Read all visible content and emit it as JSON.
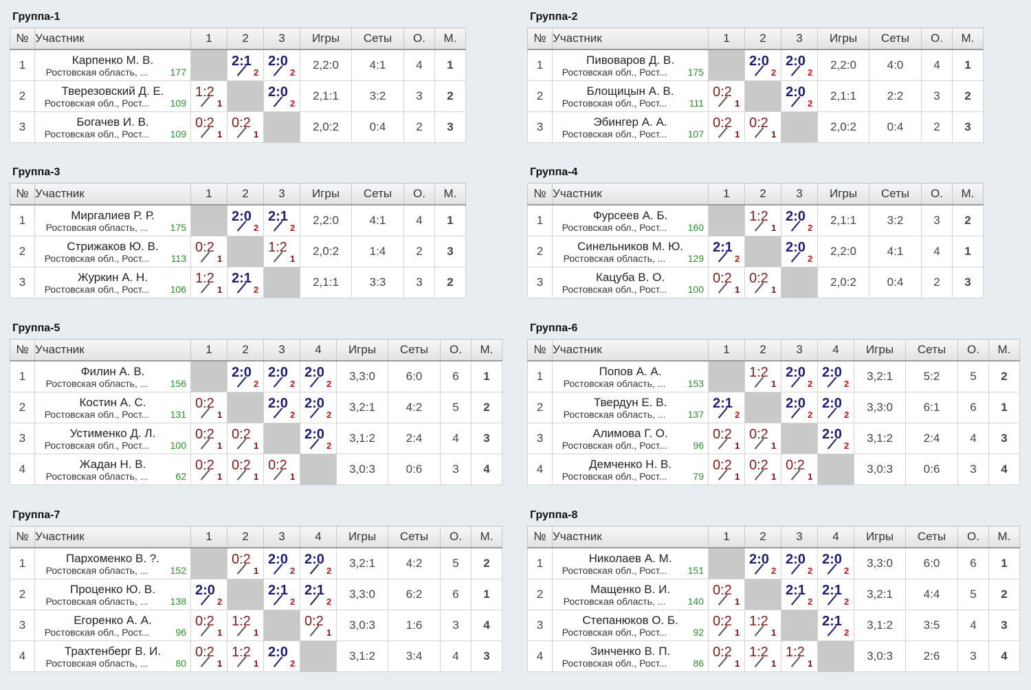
{
  "headers": {
    "num": "№",
    "player": "Участник",
    "games": "Игры",
    "sets": "Сеты",
    "points": "О.",
    "place": "М."
  },
  "groups": [
    {
      "title": "Группа-1",
      "players": [
        {
          "n": "1",
          "name": "Карпенко М. В.",
          "region": "Ростовская область, ...",
          "rating": "177",
          "results": [
            null,
            [
              "2:1",
              "2",
              "w"
            ],
            [
              "2:0",
              "2",
              "w"
            ]
          ],
          "games": "2,2:0",
          "sets": "4:1",
          "points": "4",
          "place": "1"
        },
        {
          "n": "2",
          "name": "Тверезовский Д. Е.",
          "region": "Ростовская обл., Рост...",
          "rating": "109",
          "results": [
            [
              "1:2",
              "1",
              "l"
            ],
            null,
            [
              "2:0",
              "2",
              "w"
            ]
          ],
          "games": "2,1:1",
          "sets": "3:2",
          "points": "3",
          "place": "2"
        },
        {
          "n": "3",
          "name": "Богачев И. В.",
          "region": "Ростовская обл., Рост...",
          "rating": "109",
          "results": [
            [
              "0:2",
              "1",
              "l"
            ],
            [
              "0:2",
              "1",
              "l"
            ],
            null
          ],
          "games": "2,0:2",
          "sets": "0:4",
          "points": "2",
          "place": "3"
        }
      ]
    },
    {
      "title": "Группа-2",
      "players": [
        {
          "n": "1",
          "name": "Пивоваров Д. В.",
          "region": "Ростовская обл., Рост...",
          "rating": "175",
          "results": [
            null,
            [
              "2:0",
              "2",
              "w"
            ],
            [
              "2:0",
              "2",
              "w"
            ]
          ],
          "games": "2,2:0",
          "sets": "4:0",
          "points": "4",
          "place": "1"
        },
        {
          "n": "2",
          "name": "Блощицын А. В.",
          "region": "Ростовская обл., Рост...",
          "rating": "111",
          "results": [
            [
              "0:2",
              "1",
              "l"
            ],
            null,
            [
              "2:0",
              "2",
              "w"
            ]
          ],
          "games": "2,1:1",
          "sets": "2:2",
          "points": "3",
          "place": "2"
        },
        {
          "n": "3",
          "name": "Эбингер А. А.",
          "region": "Ростовская обл., Рост...",
          "rating": "107",
          "results": [
            [
              "0:2",
              "1",
              "l"
            ],
            [
              "0:2",
              "1",
              "l"
            ],
            null
          ],
          "games": "2,0:2",
          "sets": "0:4",
          "points": "2",
          "place": "3"
        }
      ]
    },
    {
      "title": "Группа-3",
      "players": [
        {
          "n": "1",
          "name": "Миргалиев Р. Р.",
          "region": "Ростовская область, ...",
          "rating": "175",
          "results": [
            null,
            [
              "2:0",
              "2",
              "w"
            ],
            [
              "2:1",
              "2",
              "w"
            ]
          ],
          "games": "2,2:0",
          "sets": "4:1",
          "points": "4",
          "place": "1"
        },
        {
          "n": "2",
          "name": "Стрижаков Ю. В.",
          "region": "Ростовская обл., Рост...",
          "rating": "113",
          "results": [
            [
              "0:2",
              "1",
              "l"
            ],
            null,
            [
              "1:2",
              "1",
              "l"
            ]
          ],
          "games": "2,0:2",
          "sets": "1:4",
          "points": "2",
          "place": "3"
        },
        {
          "n": "3",
          "name": "Журкин А. Н.",
          "region": "Ростовская обл., Рост...",
          "rating": "106",
          "results": [
            [
              "1:2",
              "1",
              "l"
            ],
            [
              "2:1",
              "2",
              "w"
            ],
            null
          ],
          "games": "2,1:1",
          "sets": "3:3",
          "points": "3",
          "place": "2"
        }
      ]
    },
    {
      "title": "Группа-4",
      "players": [
        {
          "n": "1",
          "name": "Фурсеев А. Б.",
          "region": "Ростовская обл., Рост...",
          "rating": "160",
          "results": [
            null,
            [
              "1:2",
              "1",
              "l"
            ],
            [
              "2:0",
              "2",
              "w"
            ]
          ],
          "games": "2,1:1",
          "sets": "3:2",
          "points": "3",
          "place": "2"
        },
        {
          "n": "2",
          "name": "Синельников М. Ю.",
          "region": "Ростовская область, ...",
          "rating": "129",
          "results": [
            [
              "2:1",
              "2",
              "w"
            ],
            null,
            [
              "2:0",
              "2",
              "w"
            ]
          ],
          "games": "2,2:0",
          "sets": "4:1",
          "points": "4",
          "place": "1"
        },
        {
          "n": "3",
          "name": "Кацуба В. О.",
          "region": "Ростовская обл., Рост...",
          "rating": "100",
          "results": [
            [
              "0:2",
              "1",
              "l"
            ],
            [
              "0:2",
              "1",
              "l"
            ],
            null
          ],
          "games": "2,0:2",
          "sets": "0:4",
          "points": "2",
          "place": "3"
        }
      ]
    },
    {
      "title": "Группа-5",
      "players": [
        {
          "n": "1",
          "name": "Филин А. В.",
          "region": "Ростовская область, ...",
          "rating": "156",
          "results": [
            null,
            [
              "2:0",
              "2",
              "w"
            ],
            [
              "2:0",
              "2",
              "w"
            ],
            [
              "2:0",
              "2",
              "w"
            ]
          ],
          "games": "3,3:0",
          "sets": "6:0",
          "points": "6",
          "place": "1"
        },
        {
          "n": "2",
          "name": "Костин А. С.",
          "region": "Ростовская обл., Рост...",
          "rating": "131",
          "results": [
            [
              "0:2",
              "1",
              "l"
            ],
            null,
            [
              "2:0",
              "2",
              "w"
            ],
            [
              "2:0",
              "2",
              "w"
            ]
          ],
          "games": "3,2:1",
          "sets": "4:2",
          "points": "5",
          "place": "2"
        },
        {
          "n": "3",
          "name": "Устименко Д. Л.",
          "region": "Ростовская обл., Рост...",
          "rating": "100",
          "results": [
            [
              "0:2",
              "1",
              "l"
            ],
            [
              "0:2",
              "1",
              "l"
            ],
            null,
            [
              "2:0",
              "2",
              "w"
            ]
          ],
          "games": "3,1:2",
          "sets": "2:4",
          "points": "4",
          "place": "3"
        },
        {
          "n": "4",
          "name": "Жадан Н. В.",
          "region": "Ростовская область, ...",
          "rating": "62",
          "results": [
            [
              "0:2",
              "1",
              "l"
            ],
            [
              "0:2",
              "1",
              "l"
            ],
            [
              "0:2",
              "1",
              "l"
            ],
            null
          ],
          "games": "3,0:3",
          "sets": "0:6",
          "points": "3",
          "place": "4"
        }
      ]
    },
    {
      "title": "Группа-6",
      "players": [
        {
          "n": "1",
          "name": "Попов А. А.",
          "region": "Ростовская область, ...",
          "rating": "153",
          "results": [
            null,
            [
              "1:2",
              "1",
              "l"
            ],
            [
              "2:0",
              "2",
              "w"
            ],
            [
              "2:0",
              "2",
              "w"
            ]
          ],
          "games": "3,2:1",
          "sets": "5:2",
          "points": "5",
          "place": "2"
        },
        {
          "n": "2",
          "name": "Твердун Е. В.",
          "region": "Ростовская область, ...",
          "rating": "137",
          "results": [
            [
              "2:1",
              "2",
              "w"
            ],
            null,
            [
              "2:0",
              "2",
              "w"
            ],
            [
              "2:0",
              "2",
              "w"
            ]
          ],
          "games": "3,3:0",
          "sets": "6:1",
          "points": "6",
          "place": "1"
        },
        {
          "n": "3",
          "name": "Алимова Г. О.",
          "region": "Ростовская обл., Рост...",
          "rating": "96",
          "results": [
            [
              "0:2",
              "1",
              "l"
            ],
            [
              "0:2",
              "1",
              "l"
            ],
            null,
            [
              "2:0",
              "2",
              "w"
            ]
          ],
          "games": "3,1:2",
          "sets": "2:4",
          "points": "4",
          "place": "3"
        },
        {
          "n": "4",
          "name": "Демченко Н. В.",
          "region": "Ростовская обл., Рост...",
          "rating": "79",
          "results": [
            [
              "0:2",
              "1",
              "l"
            ],
            [
              "0:2",
              "1",
              "l"
            ],
            [
              "0:2",
              "1",
              "l"
            ],
            null
          ],
          "games": "3,0:3",
          "sets": "0:6",
          "points": "3",
          "place": "4"
        }
      ]
    },
    {
      "title": "Группа-7",
      "players": [
        {
          "n": "1",
          "name": "Пархоменко В. ?.",
          "region": "Ростовская область, ...",
          "rating": "152",
          "results": [
            null,
            [
              "0:2",
              "1",
              "l"
            ],
            [
              "2:0",
              "2",
              "w"
            ],
            [
              "2:0",
              "2",
              "w"
            ]
          ],
          "games": "3,2:1",
          "sets": "4:2",
          "points": "5",
          "place": "2"
        },
        {
          "n": "2",
          "name": "Проценко Ю. В.",
          "region": "Ростовская область, ...",
          "rating": "138",
          "results": [
            [
              "2:0",
              "2",
              "w"
            ],
            null,
            [
              "2:1",
              "2",
              "w"
            ],
            [
              "2:1",
              "2",
              "w"
            ]
          ],
          "games": "3,3:0",
          "sets": "6:2",
          "points": "6",
          "place": "1"
        },
        {
          "n": "3",
          "name": "Егоренко А. А.",
          "region": "Ростовская обл., Рост...",
          "rating": "96",
          "results": [
            [
              "0:2",
              "1",
              "l"
            ],
            [
              "1:2",
              "1",
              "l"
            ],
            null,
            [
              "0:2",
              "1",
              "l"
            ]
          ],
          "games": "3,0:3",
          "sets": "1:6",
          "points": "3",
          "place": "4"
        },
        {
          "n": "4",
          "name": "Трахтенберг В. И.",
          "region": "Ростовская область, ...",
          "rating": "80",
          "results": [
            [
              "0:2",
              "1",
              "l"
            ],
            [
              "1:2",
              "1",
              "l"
            ],
            [
              "2:0",
              "2",
              "w"
            ],
            null
          ],
          "games": "3,1:2",
          "sets": "3:4",
          "points": "4",
          "place": "3"
        }
      ]
    },
    {
      "title": "Группа-8",
      "players": [
        {
          "n": "1",
          "name": "Николаев А. М.",
          "region": "Ростовская обл., Рост...",
          "rating": "151",
          "results": [
            null,
            [
              "2:0",
              "2",
              "w"
            ],
            [
              "2:0",
              "2",
              "w"
            ],
            [
              "2:0",
              "2",
              "w"
            ]
          ],
          "games": "3,3:0",
          "sets": "6:0",
          "points": "6",
          "place": "1"
        },
        {
          "n": "2",
          "name": "Мащенко В. И.",
          "region": "Ростовская область, ...",
          "rating": "140",
          "results": [
            [
              "0:2",
              "1",
              "l"
            ],
            null,
            [
              "2:1",
              "2",
              "w"
            ],
            [
              "2:1",
              "2",
              "w"
            ]
          ],
          "games": "3,2:1",
          "sets": "4:4",
          "points": "5",
          "place": "2"
        },
        {
          "n": "3",
          "name": "Степанюков О. Б.",
          "region": "Ростовская обл., Рост...",
          "rating": "92",
          "results": [
            [
              "0:2",
              "1",
              "l"
            ],
            [
              "1:2",
              "1",
              "l"
            ],
            null,
            [
              "2:1",
              "2",
              "w"
            ]
          ],
          "games": "3,1:2",
          "sets": "3:5",
          "points": "4",
          "place": "3"
        },
        {
          "n": "4",
          "name": "Зинченко В. П.",
          "region": "Ростовская обл., Рост...",
          "rating": "86",
          "results": [
            [
              "0:2",
              "1",
              "l"
            ],
            [
              "1:2",
              "1",
              "l"
            ],
            [
              "1:2",
              "1",
              "l"
            ],
            null
          ],
          "games": "3,0:3",
          "sets": "2:6",
          "points": "3",
          "place": "4"
        }
      ]
    }
  ]
}
